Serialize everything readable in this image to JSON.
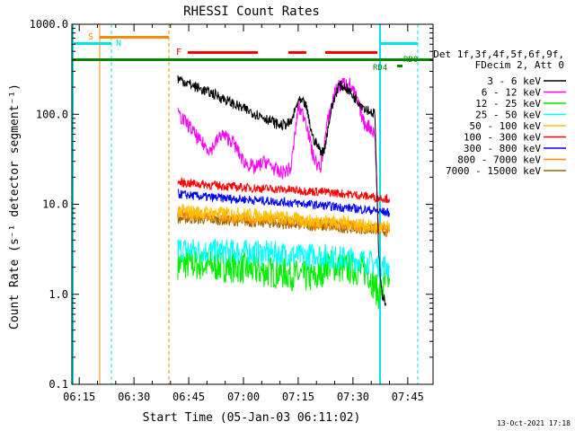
{
  "chart_data": {
    "type": "line",
    "title": "RHESSI Count Rates",
    "xlabel": "Start Time (05-Jan-03 06:11:02)",
    "ylabel": "Count Rate (s⁻¹ detector segment⁻¹)",
    "ylog": true,
    "ylim": [
      0.1,
      1000
    ],
    "xlim_minutes_after_0611": [
      0,
      40
    ],
    "x_ticks": [
      "06:15",
      "06:30",
      "06:45",
      "07:00",
      "07:15",
      "07:30",
      "07:45"
    ],
    "y_ticks": [
      "0.1",
      "1.0",
      "10.0",
      "100.0",
      "1000.0"
    ],
    "legend": {
      "placement": "right",
      "header": [
        "Det 1f,3f,4f,5f,6f,9f,",
        "FDecim 2, Att 0"
      ]
    },
    "series": [
      {
        "name": "3 - 6 keV",
        "color": "#000000",
        "x": [
          "06:42",
          "06:47",
          "06:53",
          "06:59",
          "07:05",
          "07:10",
          "07:13",
          "07:15",
          "07:17",
          "07:19",
          "07:21",
          "07:22",
          "07:24",
          "07:26",
          "07:28",
          "07:30",
          "07:33",
          "07:36",
          "07:37",
          "07:38",
          "07:39"
        ],
        "y": [
          250,
          200,
          160,
          120,
          95,
          75,
          80,
          140,
          130,
          55,
          40,
          38,
          110,
          210,
          200,
          160,
          120,
          100,
          3,
          1.0,
          0.8
        ]
      },
      {
        "name": "6 - 12 keV",
        "color": "#ff00ff",
        "x": [
          "06:42",
          "06:45",
          "06:48",
          "06:51",
          "06:54",
          "06:57",
          "07:00",
          "07:03",
          "07:06",
          "07:10",
          "07:13",
          "07:15",
          "07:17",
          "07:19",
          "07:21",
          "07:23",
          "07:25",
          "07:27",
          "07:29",
          "07:31",
          "07:33",
          "07:35",
          "07:36",
          "07:37"
        ],
        "y": [
          100,
          75,
          50,
          40,
          60,
          50,
          30,
          25,
          30,
          22,
          25,
          120,
          90,
          35,
          24,
          80,
          180,
          220,
          220,
          150,
          80,
          70,
          60,
          5
        ]
      },
      {
        "name": "12 - 25 keV",
        "color": "#00ee00",
        "x": [
          "06:42",
          "06:50",
          "06:58",
          "07:05",
          "07:12",
          "07:16",
          "07:20",
          "07:23",
          "07:26",
          "07:30",
          "07:34",
          "07:37",
          "07:40"
        ],
        "y": [
          2.2,
          2.1,
          2.0,
          1.8,
          1.7,
          1.6,
          1.5,
          2.2,
          2.0,
          1.9,
          1.8,
          1.0,
          1.5
        ]
      },
      {
        "name": "25 - 50 keV",
        "color": "#00ffff",
        "x": [
          "06:42",
          "06:50",
          "06:58",
          "07:05",
          "07:12",
          "07:16",
          "07:20",
          "07:24",
          "07:28",
          "07:32",
          "07:36",
          "07:40"
        ],
        "y": [
          3.2,
          3.0,
          3.0,
          2.9,
          2.8,
          2.6,
          2.8,
          2.6,
          2.5,
          2.4,
          2.2,
          2.0
        ]
      },
      {
        "name": "50 - 100 keV",
        "color": "#ffc000",
        "x": [
          "06:42",
          "06:50",
          "06:58",
          "07:05",
          "07:12",
          "07:18",
          "07:24",
          "07:30",
          "07:36",
          "07:40"
        ],
        "y": [
          8.5,
          8.0,
          7.8,
          7.5,
          7.0,
          6.5,
          6.5,
          6.2,
          5.5,
          5.5
        ]
      },
      {
        "name": "100 - 300 keV",
        "color": "#ff0000",
        "x": [
          "06:42",
          "06:50",
          "06:58",
          "07:05",
          "07:12",
          "07:18",
          "07:24",
          "07:30",
          "07:36",
          "07:40"
        ],
        "y": [
          17.5,
          16.5,
          15.5,
          15.0,
          14.5,
          14.0,
          13.5,
          12.8,
          12.0,
          11.5
        ]
      },
      {
        "name": "300 - 800 keV",
        "color": "#0000ff",
        "x": [
          "06:42",
          "06:50",
          "06:58",
          "07:05",
          "07:12",
          "07:18",
          "07:24",
          "07:30",
          "07:36",
          "07:40"
        ],
        "y": [
          13.0,
          12.0,
          11.5,
          11.0,
          10.5,
          10.0,
          9.5,
          9.0,
          8.5,
          8.0
        ]
      },
      {
        "name": "800 - 7000 keV",
        "color": "#ff8800",
        "x": [
          "06:42",
          "06:50",
          "06:58",
          "07:05",
          "07:12",
          "07:18",
          "07:24",
          "07:30",
          "07:36",
          "07:40"
        ],
        "y": [
          8.0,
          7.5,
          7.0,
          6.8,
          6.5,
          6.2,
          6.0,
          5.8,
          5.5,
          5.0
        ]
      },
      {
        "name": "7000 - 15000 keV",
        "color": "#996600",
        "x": [
          "06:42",
          "06:50",
          "06:58",
          "07:05",
          "07:12",
          "07:18",
          "07:24",
          "07:30",
          "07:36",
          "07:40"
        ],
        "y": [
          7.0,
          6.8,
          6.5,
          6.3,
          6.0,
          5.8,
          5.6,
          5.4,
          5.2,
          5.0
        ]
      }
    ],
    "flags": [
      {
        "label": "S",
        "color": "#ff8800"
      },
      {
        "label": "N",
        "color": "#00e5e5"
      },
      {
        "label": "F",
        "color": "#ff0000"
      },
      {
        "label": "RD0",
        "color": "#008800"
      },
      {
        "label": "RD4",
        "color": "#008800"
      }
    ],
    "timestamp": "13-Oct-2021 17:18"
  }
}
